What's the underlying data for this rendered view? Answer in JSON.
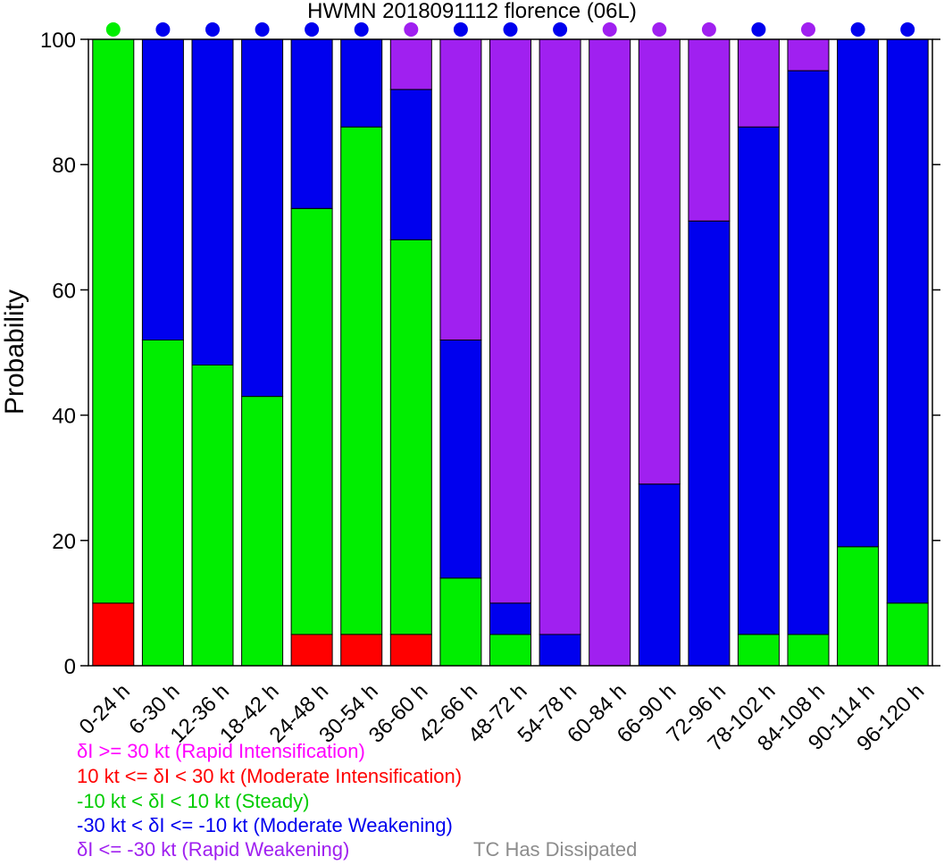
{
  "chart_data": {
    "type": "bar",
    "stacked": true,
    "title": "HWMN 2018091112 florence (06L)",
    "ylabel": "Probability",
    "ylim": [
      0,
      100
    ],
    "yticks": [
      "0",
      "20",
      "40",
      "60",
      "80",
      "100"
    ],
    "categories": [
      "0-24 h",
      "6-30 h",
      "12-36 h",
      "18-42 h",
      "24-48 h",
      "30-54 h",
      "36-60 h",
      "42-66 h",
      "48-72 h",
      "54-78 h",
      "60-84 h",
      "66-90 h",
      "72-96 h",
      "78-102 h",
      "84-108 h",
      "90-114 h",
      "96-120 h"
    ],
    "series": [
      {
        "name": "δI >= 30 kt (Rapid Intensification)",
        "color": "#ff00ff",
        "values": [
          0,
          0,
          0,
          0,
          0,
          0,
          0,
          0,
          0,
          0,
          0,
          0,
          0,
          0,
          0,
          0,
          0
        ]
      },
      {
        "name": "10 kt <= δI < 30 kt (Moderate Intensification)",
        "color": "#ff0000",
        "values": [
          10,
          0,
          0,
          0,
          5,
          5,
          5,
          0,
          0,
          0,
          0,
          0,
          0,
          0,
          0,
          0,
          0
        ]
      },
      {
        "name": "-10 kt < δI < 10 kt (Steady)",
        "color": "#00ee00",
        "values": [
          90,
          52,
          48,
          43,
          68,
          81,
          63,
          14,
          5,
          0,
          0,
          0,
          0,
          5,
          5,
          19,
          10
        ]
      },
      {
        "name": "-30 kt < δI <= -10 kt (Moderate Weakening)",
        "color": "#0000ee",
        "values": [
          0,
          48,
          52,
          57,
          27,
          14,
          24,
          38,
          5,
          5,
          0,
          29,
          71,
          81,
          90,
          81,
          90
        ]
      },
      {
        "name": "δI <= -30 kt (Rapid Weakening)",
        "color": "#a020f0",
        "values": [
          0,
          0,
          0,
          0,
          0,
          0,
          8,
          48,
          90,
          95,
          100,
          71,
          29,
          14,
          5,
          0,
          0
        ]
      }
    ],
    "top_markers": [
      "#00ee00",
      "#0000ee",
      "#0000ee",
      "#0000ee",
      "#0000ee",
      "#0000ee",
      "#a020f0",
      "#0000ee",
      "#0000ee",
      "#0000ee",
      "#a020f0",
      "#a020f0",
      "#a020f0",
      "#0000ee",
      "#a020f0",
      "#0000ee",
      "#0000ee"
    ],
    "extra_legend": {
      "label": "TC Has Dissipated",
      "color": "#8c8c8c"
    },
    "grid": false,
    "legend_placement": "bottom-left"
  }
}
